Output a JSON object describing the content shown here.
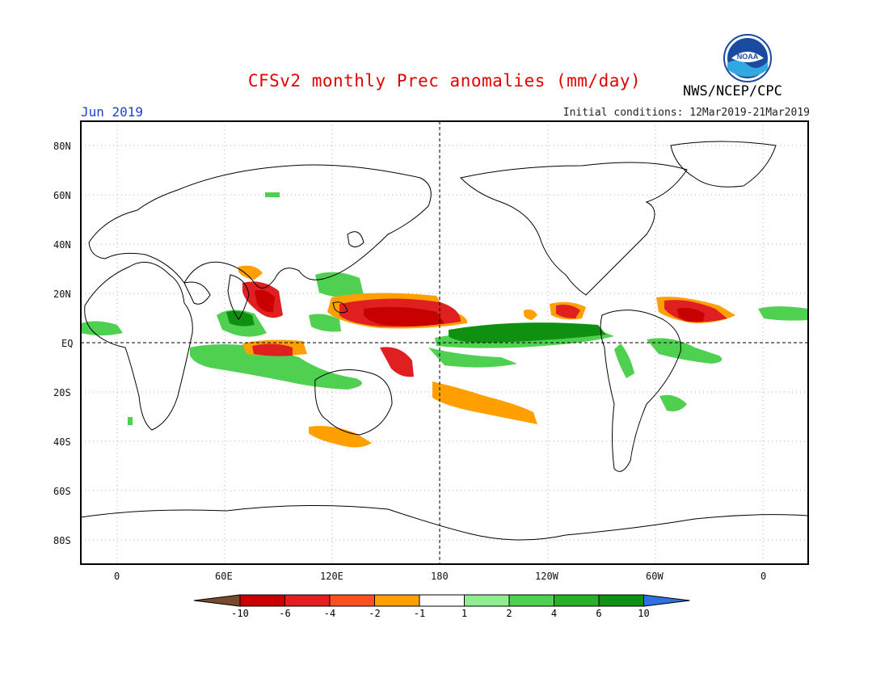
{
  "header": {
    "title": "CFSv2 monthly Prec anomalies (mm/day)",
    "organization": "NWS/NCEP/CPC",
    "logo_text": "NOAA",
    "month": "Jun 2019",
    "initial_conditions": "Initial conditions: 12Mar2019-21Mar2019"
  },
  "map": {
    "lat_labels": [
      "80N",
      "60N",
      "40N",
      "20N",
      "EQ",
      "20S",
      "40S",
      "60S",
      "80S"
    ],
    "lon_labels": [
      "0",
      "60E",
      "120E",
      "180",
      "120W",
      "60W",
      "0"
    ]
  },
  "legend": {
    "tick_labels": [
      "-10",
      "-6",
      "-4",
      "-2",
      "-1",
      "1",
      "2",
      "4",
      "6",
      "10"
    ],
    "colors": [
      "#7a4a2e",
      "#c80000",
      "#e02020",
      "#ff5020",
      "#ffa000",
      "#ffffff",
      "#90ee90",
      "#50d050",
      "#28b028",
      "#109010",
      "#3070e0"
    ]
  }
}
